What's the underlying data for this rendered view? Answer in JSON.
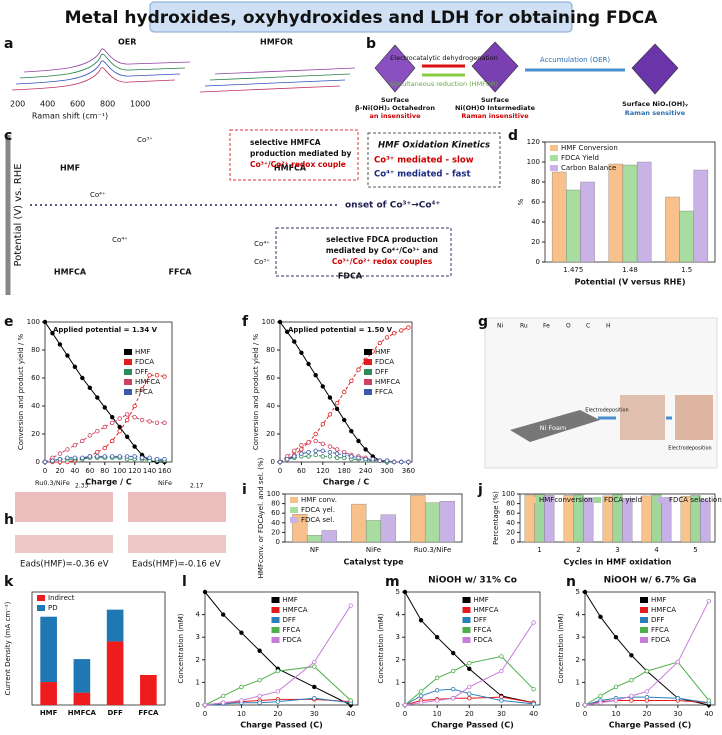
{
  "title": "Metal hydroxides, oxyhydroxides and LDH for obtaining FDCA",
  "panel_letters": [
    "a",
    "b",
    "c",
    "d",
    "e",
    "f",
    "g",
    "h",
    "i",
    "j",
    "k",
    "l",
    "m",
    "n"
  ],
  "panel_a": {
    "labels": [
      "OER",
      "HMFOR"
    ],
    "axis_label": "Raman shift (cm⁻¹)",
    "ticks": [
      "200",
      "400",
      "600",
      "800",
      "1000"
    ]
  },
  "panel_b": {
    "arrow_top": "Electrocatalytic dehydrogenation",
    "arrow_bottom": "Simultaneous reduction (HMFOR)",
    "arrow_right": "Accumulation (OER)",
    "stage1": [
      "Surface",
      "β-Ni(OH)₂ Octahedron",
      "an insensitive"
    ],
    "stage2": [
      "Surface",
      "Ni(OH)O Intermediate",
      "Raman insensitive"
    ],
    "stage3": [
      "Surface NiOₓ(OH)ᵧ",
      "Raman sensitive"
    ]
  },
  "panel_c": {
    "y_label": "Potential (V) vs. RHE",
    "molecules": [
      "HMF",
      "HMFCA",
      "HMFCA",
      "FFCA",
      "FDCA"
    ],
    "onset": "onset of Co³⁺→Co⁴⁺",
    "box1": [
      "selective HMFCA",
      "production mediated by",
      "Co³⁺/Co²⁺ redox couple"
    ],
    "box2": [
      "selective FDCA production",
      "mediated by Co⁴⁺/Co³⁺ and",
      "Co³⁺/Co²⁺ redox couples"
    ],
    "kinetics": [
      "HMF Oxidation Kinetics",
      "Co³⁺ mediated - slow",
      "Co⁴⁺ mediated - fast"
    ],
    "arrow_labels": [
      "Co³⁺",
      "Co⁴⁺",
      "Co⁴⁺",
      "Co⁴⁺",
      "Co³⁺"
    ]
  },
  "panel_g": {
    "legend": [
      "Ni",
      "Ru",
      "Fe",
      "O",
      "C",
      "H"
    ],
    "substrate": "Ni Foam",
    "steps": [
      "Electrodeposition",
      "Electrodeposition"
    ]
  },
  "panel_h": {
    "labels": [
      "Ru0.3/NiFe",
      "NiFe"
    ],
    "distances": [
      "2.33",
      "2.17"
    ],
    "energies": [
      "Eads(HMF)=-0.36 eV",
      "Eads(HMF)=-0.16 eV"
    ]
  },
  "chart_data": [
    {
      "type": "bar",
      "categories": [
        "1.475",
        "1.48",
        "1.5"
      ],
      "xlabel": "Potential (V versus RHE)",
      "ylabel": "%",
      "ylim": [
        0,
        120
      ],
      "yticks": [
        0,
        20,
        40,
        60,
        80,
        100,
        120
      ],
      "legend": "upper left",
      "series": [
        {
          "name": "HMF Conversion",
          "color": "#f8c08a",
          "values": [
            90,
            98,
            65
          ]
        },
        {
          "name": "FDCA Yield",
          "color": "#a9dca0",
          "values": [
            72,
            97,
            51
          ]
        },
        {
          "name": "Carbon Balance",
          "color": "#c9b3e6",
          "values": [
            80,
            100,
            92
          ]
        }
      ]
    },
    {
      "type": "line",
      "annotation": "Applied potential = 1.34 V",
      "xlabel": "Charge / C",
      "ylabel": "Conversion and product yield / %",
      "xlim": [
        0,
        170
      ],
      "xticks": [
        0,
        20,
        40,
        60,
        80,
        100,
        120,
        140,
        160
      ],
      "ylim": [
        0,
        100
      ],
      "yticks": [
        0,
        20,
        40,
        60,
        80,
        100
      ],
      "legend": "center right",
      "x": [
        0,
        10,
        20,
        30,
        40,
        50,
        60,
        70,
        80,
        90,
        100,
        110,
        120,
        130,
        140,
        150,
        160
      ],
      "series": [
        {
          "name": "HMF",
          "color": "#000000",
          "dashed": false,
          "values": [
            100,
            92,
            84,
            76,
            68,
            60,
            53,
            46,
            39,
            32,
            25,
            18,
            11,
            5,
            1,
            0,
            0
          ]
        },
        {
          "name": "FDCA",
          "color": "#e02020",
          "dashed": true,
          "values": [
            0,
            0,
            0,
            0,
            1,
            2,
            4,
            7,
            10,
            15,
            22,
            30,
            40,
            52,
            62,
            62,
            61
          ]
        },
        {
          "name": "DFF",
          "color": "#2e8b57",
          "dashed": true,
          "values": [
            0,
            1,
            2,
            2,
            2,
            2,
            3,
            3,
            3,
            3,
            3,
            2,
            2,
            2,
            1,
            1,
            1
          ]
        },
        {
          "name": "HMFCA",
          "color": "#d04060",
          "dashed": true,
          "values": [
            0,
            3,
            6,
            9,
            12,
            15,
            19,
            22,
            25,
            28,
            31,
            34,
            32,
            30,
            29,
            28,
            28
          ]
        },
        {
          "name": "FFCA",
          "color": "#3b5ba9",
          "dashed": true,
          "values": [
            0,
            1,
            2,
            3,
            3,
            3,
            4,
            4,
            4,
            4,
            4,
            4,
            4,
            3,
            3,
            2,
            2
          ]
        }
      ]
    },
    {
      "type": "line",
      "annotation": "Applied potential = 1.50 V",
      "xlabel": "Charge / C",
      "ylabel": "Conversion and product yield / %",
      "xlim": [
        0,
        370
      ],
      "xticks": [
        0,
        60,
        120,
        180,
        240,
        300,
        360
      ],
      "ylim": [
        0,
        100
      ],
      "yticks": [
        0,
        20,
        40,
        60,
        80,
        100
      ],
      "legend": "center right",
      "x": [
        0,
        20,
        40,
        60,
        80,
        100,
        120,
        140,
        160,
        180,
        200,
        220,
        240,
        260,
        280,
        300,
        320,
        340,
        360
      ],
      "series": [
        {
          "name": "HMF",
          "color": "#000000",
          "dashed": false,
          "values": [
            100,
            93,
            86,
            78,
            70,
            62,
            54,
            46,
            38,
            30,
            22,
            15,
            9,
            4,
            1,
            0,
            0,
            0,
            0
          ]
        },
        {
          "name": "FDCA",
          "color": "#e02020",
          "dashed": true,
          "values": [
            0,
            2,
            5,
            9,
            14,
            20,
            27,
            34,
            42,
            50,
            58,
            66,
            73,
            79,
            85,
            89,
            92,
            94,
            96
          ]
        },
        {
          "name": "DFF",
          "color": "#2e8b57",
          "dashed": true,
          "values": [
            0,
            2,
            3,
            4,
            4,
            5,
            4,
            4,
            3,
            3,
            2,
            2,
            1,
            1,
            1,
            0,
            0,
            0,
            0
          ]
        },
        {
          "name": "HMFCA",
          "color": "#d04060",
          "dashed": true,
          "values": [
            0,
            4,
            8,
            12,
            14,
            15,
            13,
            11,
            9,
            7,
            5,
            4,
            3,
            2,
            1,
            1,
            0,
            0,
            0
          ]
        },
        {
          "name": "FFCA",
          "color": "#3b5ba9",
          "dashed": true,
          "values": [
            0,
            2,
            4,
            6,
            7,
            8,
            8,
            7,
            6,
            5,
            4,
            3,
            2,
            2,
            1,
            1,
            0,
            0,
            0
          ]
        }
      ]
    },
    {
      "type": "bar",
      "categories": [
        "NF",
        "NiFe",
        "Ru0.3/NiFe"
      ],
      "xlabel": "Catalyst type",
      "ylabel": "HMFconv. or FDCAyel. and sel. (%)",
      "ylim": [
        0,
        100
      ],
      "yticks": [
        0,
        20,
        40,
        60,
        80,
        100
      ],
      "legend": "upper left",
      "series": [
        {
          "name": "HMF conv.",
          "color": "#f8c08a",
          "values": [
            58,
            79,
            97
          ]
        },
        {
          "name": "FDCA yel.",
          "color": "#a9dca0",
          "values": [
            14,
            45,
            82
          ]
        },
        {
          "name": "FDCA sel.",
          "color": "#c9b3e6",
          "values": [
            24,
            57,
            85
          ]
        }
      ]
    },
    {
      "type": "bar",
      "categories": [
        "1",
        "2",
        "3",
        "4",
        "5"
      ],
      "xlabel": "Cycles in HMF oxidation",
      "ylabel": "Percentage (%)",
      "ylim": [
        0,
        100
      ],
      "yticks": [
        0,
        20,
        40,
        60,
        80,
        100
      ],
      "legend": "top row",
      "series": [
        {
          "name": "HMFconversion",
          "color": "#f9c48c",
          "values": [
            98,
            97,
            96,
            96,
            95
          ]
        },
        {
          "name": "FDCA yield",
          "color": "#9fd89a",
          "values": [
            99,
            98,
            99,
            98,
            97
          ]
        },
        {
          "name": "FDCA selection",
          "color": "#c6b0e6",
          "values": [
            97,
            92,
            91,
            93,
            88
          ]
        }
      ]
    },
    {
      "type": "stacked_bar",
      "categories": [
        "HMF",
        "HMFCA",
        "DFF",
        "FFCA"
      ],
      "ylabel": "Current Density (mA cm⁻²)",
      "ylim": [
        0,
        3.2
      ],
      "legend": "upper left",
      "series": [
        {
          "name": "Indirect",
          "color": "#ee1c1c",
          "values": [
            0.65,
            0.35,
            1.8,
            0.85
          ]
        },
        {
          "name": "PD",
          "color": "#1f77b4",
          "values": [
            1.85,
            0.95,
            0.9,
            0
          ]
        }
      ]
    },
    {
      "type": "line",
      "xlabel": "Charge Passed (C)",
      "ylabel": "Concentration (mM)",
      "xlim": [
        0,
        42
      ],
      "xticks": [
        0,
        10,
        20,
        30,
        40
      ],
      "ylim": [
        0,
        5
      ],
      "yticks": [
        0,
        1,
        2,
        3,
        4
      ],
      "legend": "upper center",
      "x": [
        0,
        5,
        10,
        15,
        20,
        30,
        40
      ],
      "series": [
        {
          "name": "HMF",
          "color": "#000000",
          "values": [
            5,
            4,
            3.2,
            2.4,
            1.6,
            0.8,
            0
          ]
        },
        {
          "name": "HMFCA",
          "color": "#e41a1c",
          "values": [
            0,
            0.1,
            0.15,
            0.2,
            0.25,
            0.25,
            0.15
          ]
        },
        {
          "name": "DFF",
          "color": "#2a7fba",
          "values": [
            0,
            0.05,
            0.1,
            0.1,
            0.15,
            0.3,
            0.1
          ]
        },
        {
          "name": "FFCA",
          "color": "#4daf4a",
          "values": [
            0,
            0.4,
            0.8,
            1.1,
            1.5,
            1.7,
            0.2
          ]
        },
        {
          "name": "FDCA",
          "color": "#c77ddb",
          "values": [
            0,
            0.1,
            0.2,
            0.4,
            0.6,
            1.9,
            4.4
          ]
        }
      ]
    },
    {
      "type": "line",
      "title": "NiOOH w/ 31% Co",
      "xlabel": "Charge Passed (C)",
      "ylabel": "Concentration (mM)",
      "xlim": [
        0,
        42
      ],
      "xticks": [
        0,
        10,
        20,
        30,
        40
      ],
      "ylim": [
        0,
        5
      ],
      "yticks": [
        0,
        1,
        2,
        3,
        4,
        5
      ],
      "legend": "upper center",
      "x": [
        0,
        5,
        10,
        15,
        20,
        30,
        40
      ],
      "series": [
        {
          "name": "HMF",
          "color": "#000000",
          "values": [
            5,
            3.75,
            3,
            2.3,
            1.6,
            0.4,
            0.1
          ]
        },
        {
          "name": "HMFCA",
          "color": "#e41a1c",
          "values": [
            0,
            0.2,
            0.25,
            0.3,
            0.3,
            0.35,
            0.1
          ]
        },
        {
          "name": "DFF",
          "color": "#2a7fba",
          "values": [
            0,
            0.4,
            0.65,
            0.7,
            0.5,
            0.2,
            0.05
          ]
        },
        {
          "name": "FFCA",
          "color": "#4daf4a",
          "values": [
            0,
            0.6,
            1.2,
            1.5,
            1.85,
            2.15,
            0.7
          ]
        },
        {
          "name": "FDCA",
          "color": "#c77ddb",
          "values": [
            0,
            0.1,
            0.2,
            0.3,
            0.8,
            1.5,
            3.65
          ]
        }
      ]
    },
    {
      "type": "line",
      "title": "NiOOH w/ 6.7% Ga",
      "xlabel": "Charge Passed (C)",
      "ylabel": "Concentration (mM)",
      "xlim": [
        0,
        42
      ],
      "xticks": [
        0,
        10,
        20,
        30,
        40
      ],
      "ylim": [
        0,
        5
      ],
      "yticks": [
        0,
        1,
        2,
        3,
        4,
        5
      ],
      "legend": "upper center",
      "x": [
        0,
        5,
        10,
        15,
        20,
        30,
        40
      ],
      "series": [
        {
          "name": "HMF",
          "color": "#000000",
          "values": [
            5,
            3.9,
            3,
            2.2,
            1.5,
            0.3,
            0
          ]
        },
        {
          "name": "HMFCA",
          "color": "#e41a1c",
          "values": [
            0,
            0.15,
            0.2,
            0.2,
            0.2,
            0.2,
            0.1
          ]
        },
        {
          "name": "DFF",
          "color": "#2a7fba",
          "values": [
            0,
            0.2,
            0.3,
            0.35,
            0.35,
            0.3,
            0.1
          ]
        },
        {
          "name": "FFCA",
          "color": "#4daf4a",
          "values": [
            0,
            0.4,
            0.8,
            1.1,
            1.5,
            1.9,
            0.2
          ]
        },
        {
          "name": "FDCA",
          "color": "#c77ddb",
          "values": [
            0,
            0.1,
            0.2,
            0.4,
            0.6,
            1.9,
            4.6
          ]
        }
      ]
    }
  ]
}
